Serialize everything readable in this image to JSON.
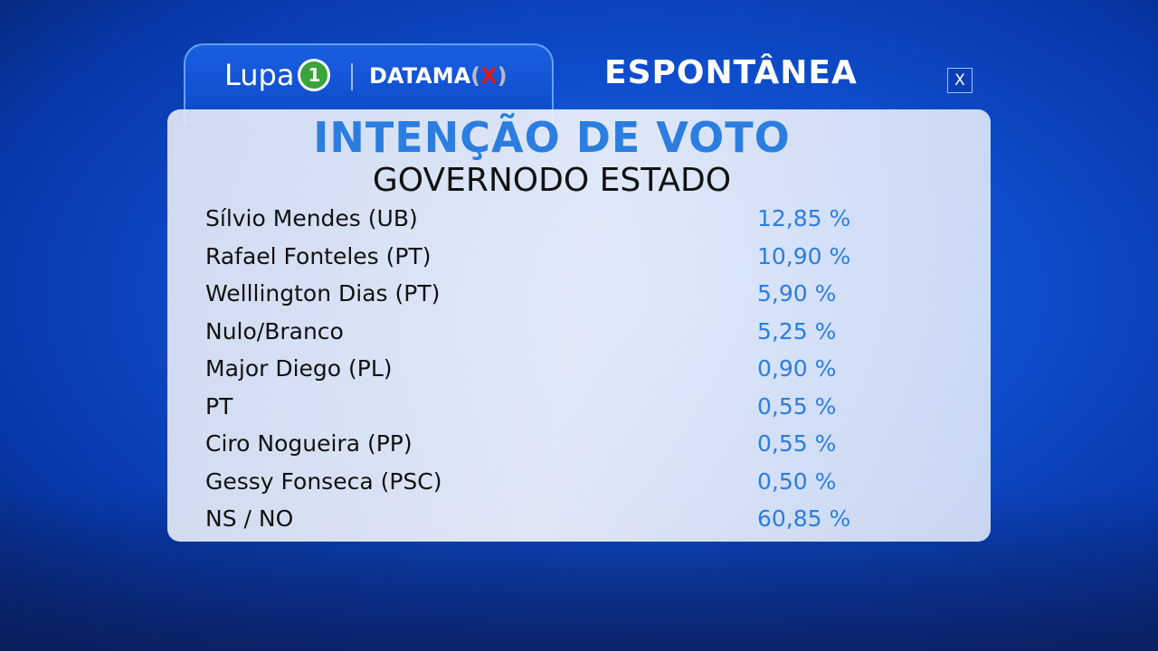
{
  "header": {
    "logo_text": "Lupa",
    "logo_badge": "1",
    "partner": "DATAMA",
    "partner_x": "X",
    "paren_open": "(",
    "paren_close": ")",
    "category": "ESPONTÂNEA",
    "close_label": "X"
  },
  "panel": {
    "title": "INTENÇÃO DE VOTO",
    "subtitle": "GOVERNODO ESTADO",
    "rows": [
      {
        "name": "Sílvio Mendes (UB)",
        "value": "12,85 %"
      },
      {
        "name": "Rafael Fonteles (PT)",
        "value": "10,90 %"
      },
      {
        "name": "Welllington Dias (PT)",
        "value": "5,90 %"
      },
      {
        "name": "Nulo/Branco",
        "value": "5,25 %"
      },
      {
        "name": "Major Diego (PL)",
        "value": "0,90 %"
      },
      {
        "name": "PT",
        "value": "0,55 %"
      },
      {
        "name": "Ciro Nogueira (PP)",
        "value": "0,55 %"
      },
      {
        "name": "Gessy Fonseca (PSC)",
        "value": "0,50 %"
      },
      {
        "name": "NS / NO",
        "value": "60,85 %"
      }
    ]
  }
}
